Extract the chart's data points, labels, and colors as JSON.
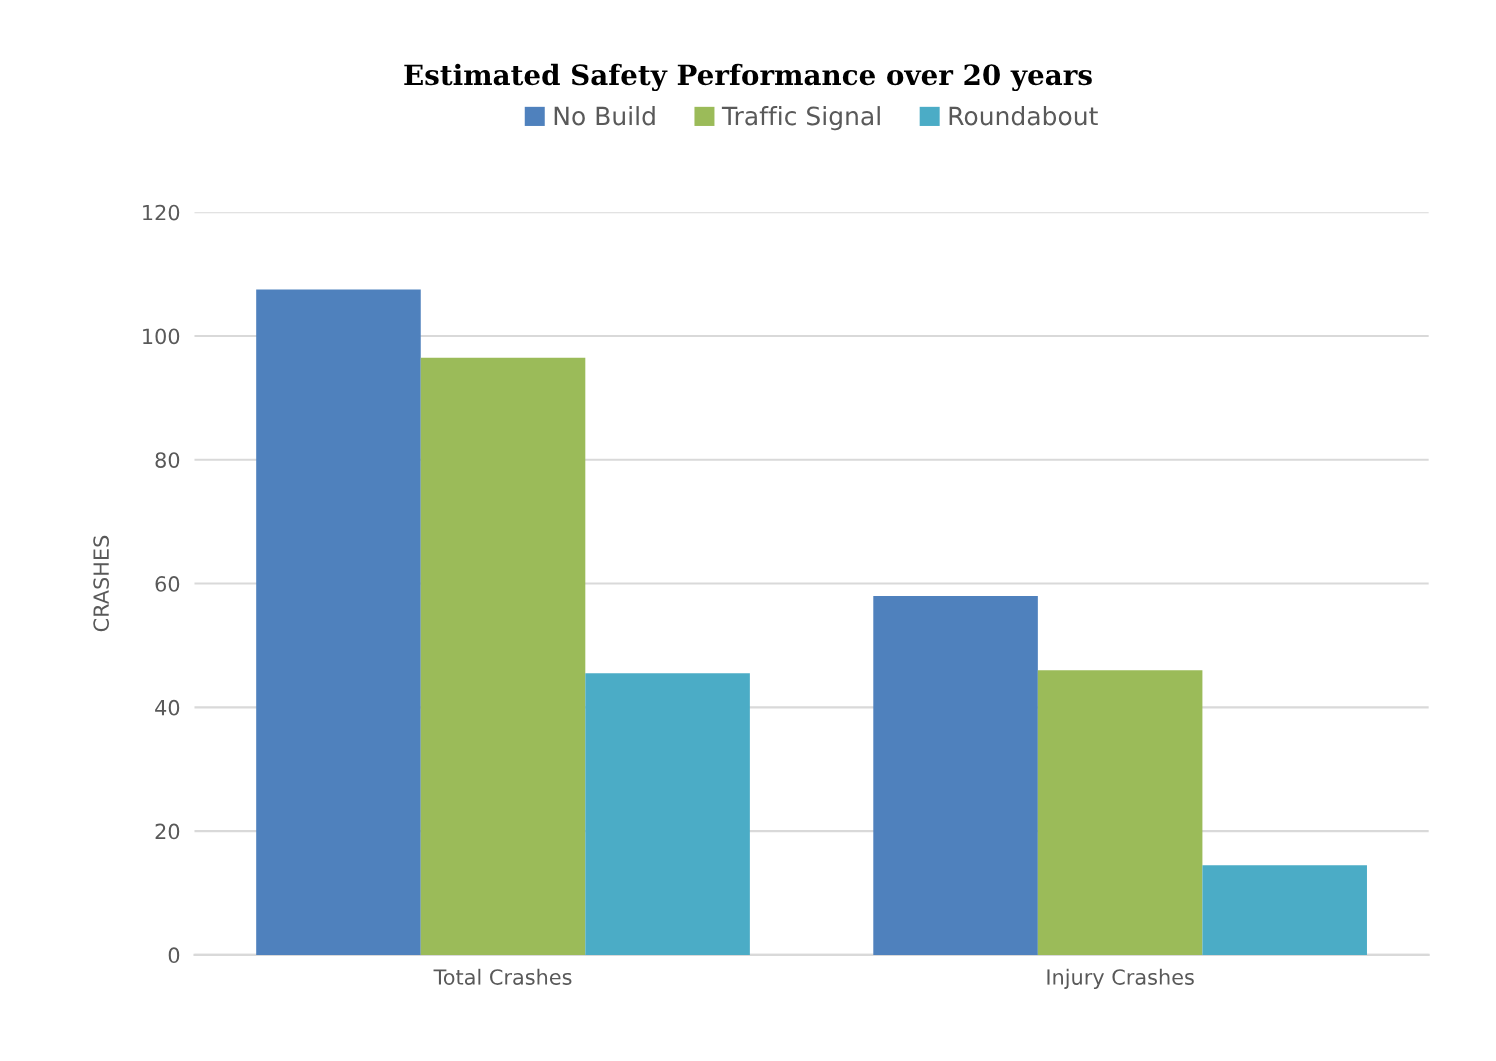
{
  "chart_data": {
    "type": "bar",
    "title": "Estimated Safety Performance over 20 years",
    "ylabel": "CRASHES",
    "categories": [
      "Total Crashes",
      "Injury Crashes"
    ],
    "series": [
      {
        "name": "No Build",
        "color": "#4f81bd",
        "values": [
          107.5,
          58
        ]
      },
      {
        "name": "Traffic Signal",
        "color": "#9bbb59",
        "values": [
          96.5,
          46
        ]
      },
      {
        "name": "Roundabout",
        "color": "#4bacc6",
        "values": [
          45.5,
          14.5
        ]
      }
    ],
    "ylim": [
      0,
      120
    ],
    "yticks": [
      0,
      20,
      40,
      60,
      80,
      100,
      120
    ],
    "grid": "y",
    "legend": "top"
  }
}
